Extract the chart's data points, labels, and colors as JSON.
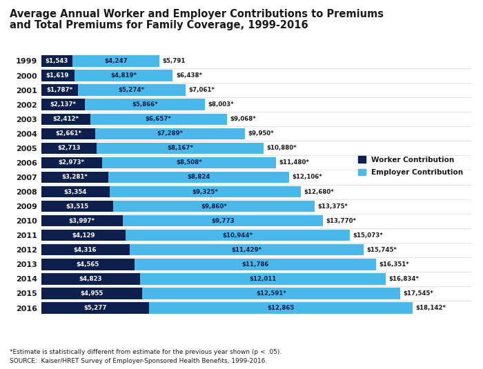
{
  "title_line1": "Average Annual Worker and Employer Contributions to Premiums",
  "title_line2": "and Total Premiums for Family Coverage, 1999-2016",
  "years": [
    "1999",
    "2000",
    "2001",
    "2002",
    "2003",
    "2004",
    "2005",
    "2006",
    "2007",
    "2008",
    "2009",
    "2010",
    "2011",
    "2012",
    "2013",
    "2014",
    "2015",
    "2016"
  ],
  "worker": [
    1543,
    1619,
    1787,
    2137,
    2412,
    2661,
    2713,
    2973,
    3281,
    3354,
    3515,
    3997,
    4129,
    4316,
    4565,
    4823,
    4955,
    5277
  ],
  "employer": [
    4247,
    4819,
    5274,
    5866,
    6657,
    7289,
    8167,
    8508,
    8824,
    9325,
    9860,
    9773,
    10944,
    11429,
    11786,
    12011,
    12591,
    12865
  ],
  "total": [
    5791,
    6438,
    7061,
    8003,
    9068,
    9950,
    10880,
    11480,
    12106,
    12680,
    13375,
    13770,
    15073,
    15745,
    16351,
    16834,
    17545,
    18142
  ],
  "worker_labels": [
    "$1,543",
    "$1,619",
    "$1,787*",
    "$2,137*",
    "$2,412*",
    "$2,661*",
    "$2,713",
    "$2,973*",
    "$3,281*",
    "$3,354",
    "$3,515",
    "$3,997*",
    "$4,129",
    "$4,316",
    "$4,565",
    "$4,823",
    "$4,955",
    "$5,277"
  ],
  "employer_labels": [
    "$4,247",
    "$4,819*",
    "$5,274*",
    "$5,866*",
    "$6,657*",
    "$7,289*",
    "$8,167*",
    "$8,508*",
    "$8,824",
    "$9,325*",
    "$9,860*",
    "$9,773",
    "$10,944*",
    "$11,429*",
    "$11,786",
    "$12,011",
    "$12,591*",
    "$12,865"
  ],
  "total_labels": [
    "$5,791",
    "$6,438*",
    "$7,061*",
    "$8,003*",
    "$9,068*",
    "$9,950*",
    "$10,880*",
    "$11,480*",
    "$12,106*",
    "$12,680*",
    "$13,375*",
    "$13,770*",
    "$15,073*",
    "$15,745*",
    "$16,351*",
    "$16,834*",
    "$17,545*",
    "$18,142*"
  ],
  "worker_color": "#0d1f4c",
  "employer_color": "#4ab8e8",
  "background_color": "#ffffff",
  "footnote1": "*Estimate is statistically different from estimate for the previous year shown (p < .05).",
  "footnote2": "SOURCE:  Kaiser/HRET Survey of Employer-Sponsored Health Benefits, 1999-2016.",
  "xlim": 21000,
  "bar_xlim": 18500
}
